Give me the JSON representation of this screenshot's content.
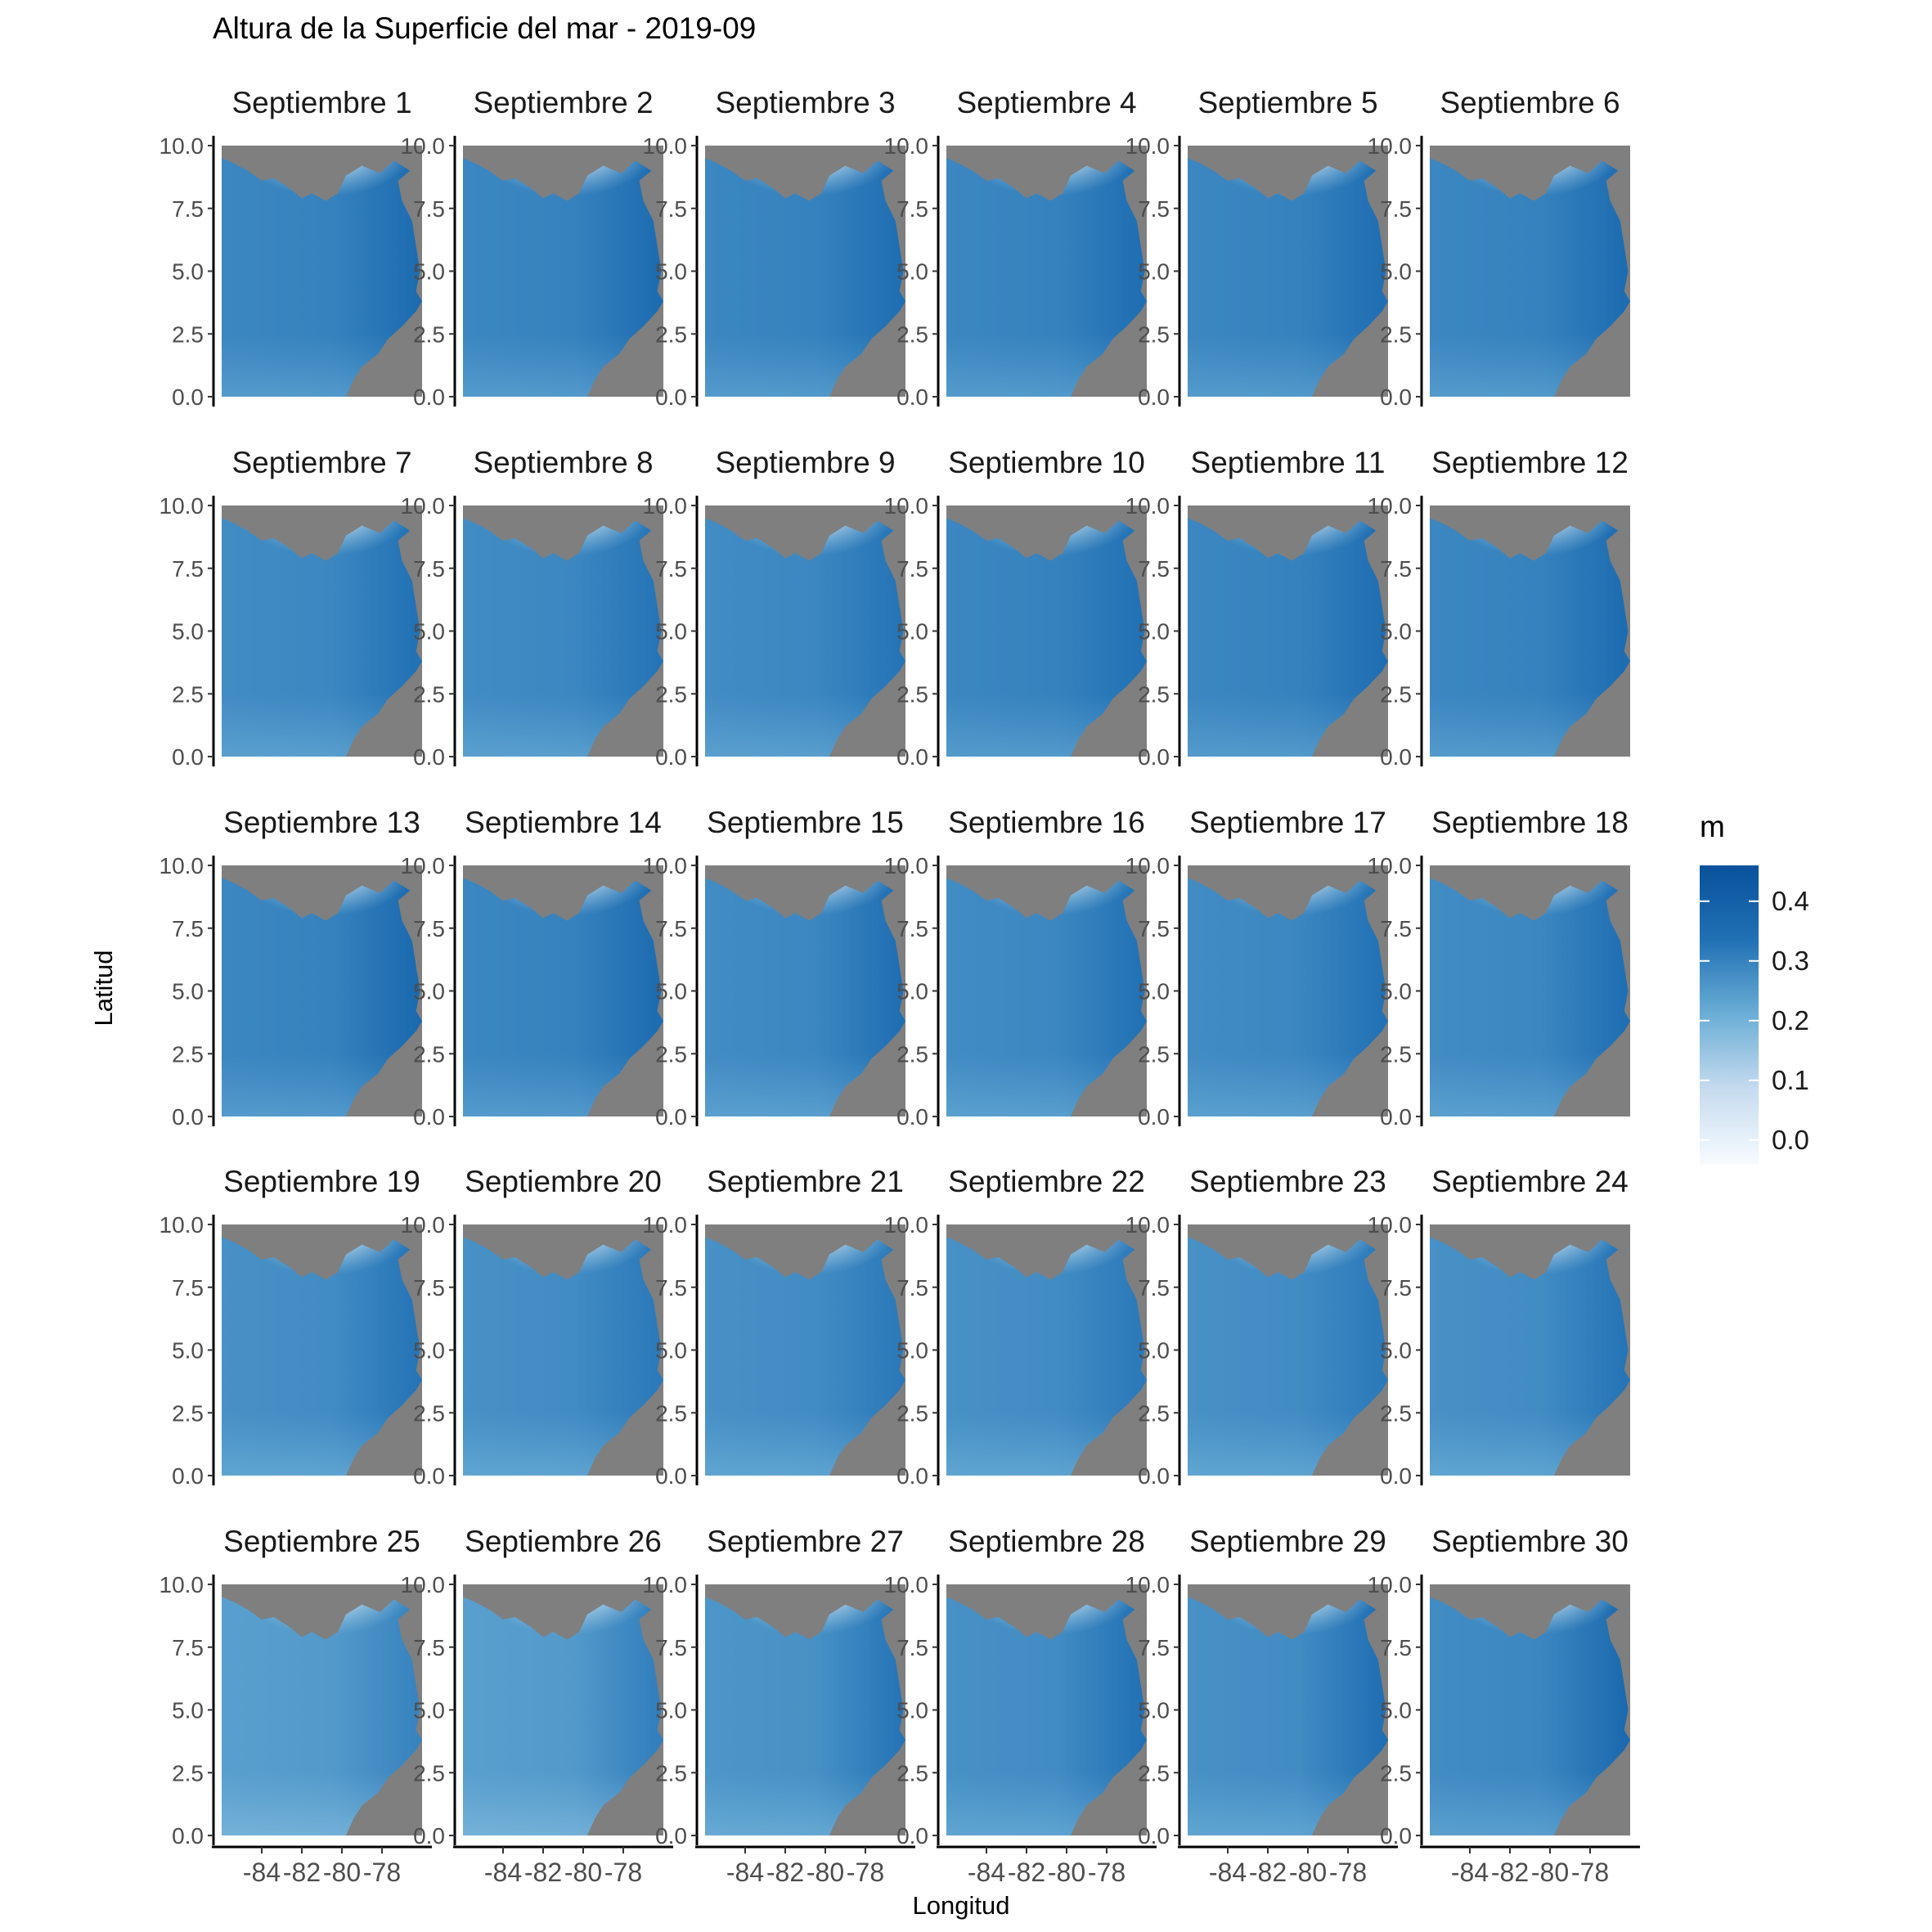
{
  "chart_data": {
    "type": "heatmap",
    "title": "Altura de la Superficie del mar - 2019-09",
    "xlabel": "Longitud",
    "ylabel": "Latitud",
    "x_ticks": [
      "-84",
      "-82",
      "-80",
      "-78"
    ],
    "y_ticks": [
      "0.0",
      "2.5",
      "5.0",
      "7.5",
      "10.0"
    ],
    "x_values": [
      -84,
      -82,
      -80,
      -78
    ],
    "y_values": [
      0.0,
      2.5,
      5.0,
      7.5,
      10.0
    ],
    "xlim": [
      -86,
      -76
    ],
    "ylim": [
      0,
      10
    ],
    "facet_rows": 5,
    "facet_cols": 6,
    "land_color": "#7f7f7f",
    "colorscale": [
      "#f7fbff",
      "#c6dbef",
      "#6baed6",
      "#2171b5",
      "#08519c"
    ],
    "legend": {
      "title": "m",
      "ticks": [
        "0.4",
        "0.3",
        "0.2",
        "0.1",
        "0.0"
      ],
      "tick_values": [
        0.4,
        0.3,
        0.2,
        0.1,
        0.0
      ],
      "range": [
        -0.04,
        0.46
      ],
      "placement": "right"
    },
    "panels": [
      {
        "label": "Septiembre 1",
        "mean": 0.3,
        "east": 0.36
      },
      {
        "label": "Septiembre 2",
        "mean": 0.3,
        "east": 0.36
      },
      {
        "label": "Septiembre 3",
        "mean": 0.3,
        "east": 0.35
      },
      {
        "label": "Septiembre 4",
        "mean": 0.3,
        "east": 0.35
      },
      {
        "label": "Septiembre 5",
        "mean": 0.3,
        "east": 0.35
      },
      {
        "label": "Septiembre 6",
        "mean": 0.3,
        "east": 0.36
      },
      {
        "label": "Septiembre 7",
        "mean": 0.29,
        "east": 0.34
      },
      {
        "label": "Septiembre 8",
        "mean": 0.29,
        "east": 0.33
      },
      {
        "label": "Septiembre 9",
        "mean": 0.29,
        "east": 0.33
      },
      {
        "label": "Septiembre 10",
        "mean": 0.3,
        "east": 0.34
      },
      {
        "label": "Septiembre 11",
        "mean": 0.3,
        "east": 0.35
      },
      {
        "label": "Septiembre 12",
        "mean": 0.3,
        "east": 0.36
      },
      {
        "label": "Septiembre 13",
        "mean": 0.3,
        "east": 0.37
      },
      {
        "label": "Septiembre 14",
        "mean": 0.3,
        "east": 0.36
      },
      {
        "label": "Septiembre 15",
        "mean": 0.29,
        "east": 0.35
      },
      {
        "label": "Septiembre 16",
        "mean": 0.29,
        "east": 0.34
      },
      {
        "label": "Septiembre 17",
        "mean": 0.29,
        "east": 0.34
      },
      {
        "label": "Septiembre 18",
        "mean": 0.29,
        "east": 0.35
      },
      {
        "label": "Septiembre 19",
        "mean": 0.28,
        "east": 0.33
      },
      {
        "label": "Septiembre 20",
        "mean": 0.28,
        "east": 0.32
      },
      {
        "label": "Septiembre 21",
        "mean": 0.28,
        "east": 0.32
      },
      {
        "label": "Septiembre 22",
        "mean": 0.28,
        "east": 0.32
      },
      {
        "label": "Septiembre 23",
        "mean": 0.28,
        "east": 0.32
      },
      {
        "label": "Septiembre 24",
        "mean": 0.28,
        "east": 0.33
      },
      {
        "label": "Septiembre 25",
        "mean": 0.25,
        "east": 0.3
      },
      {
        "label": "Septiembre 26",
        "mean": 0.25,
        "east": 0.31
      },
      {
        "label": "Septiembre 27",
        "mean": 0.27,
        "east": 0.33
      },
      {
        "label": "Septiembre 28",
        "mean": 0.28,
        "east": 0.34
      },
      {
        "label": "Septiembre 29",
        "mean": 0.28,
        "east": 0.35
      },
      {
        "label": "Septiembre 30",
        "mean": 0.29,
        "east": 0.37
      }
    ]
  }
}
